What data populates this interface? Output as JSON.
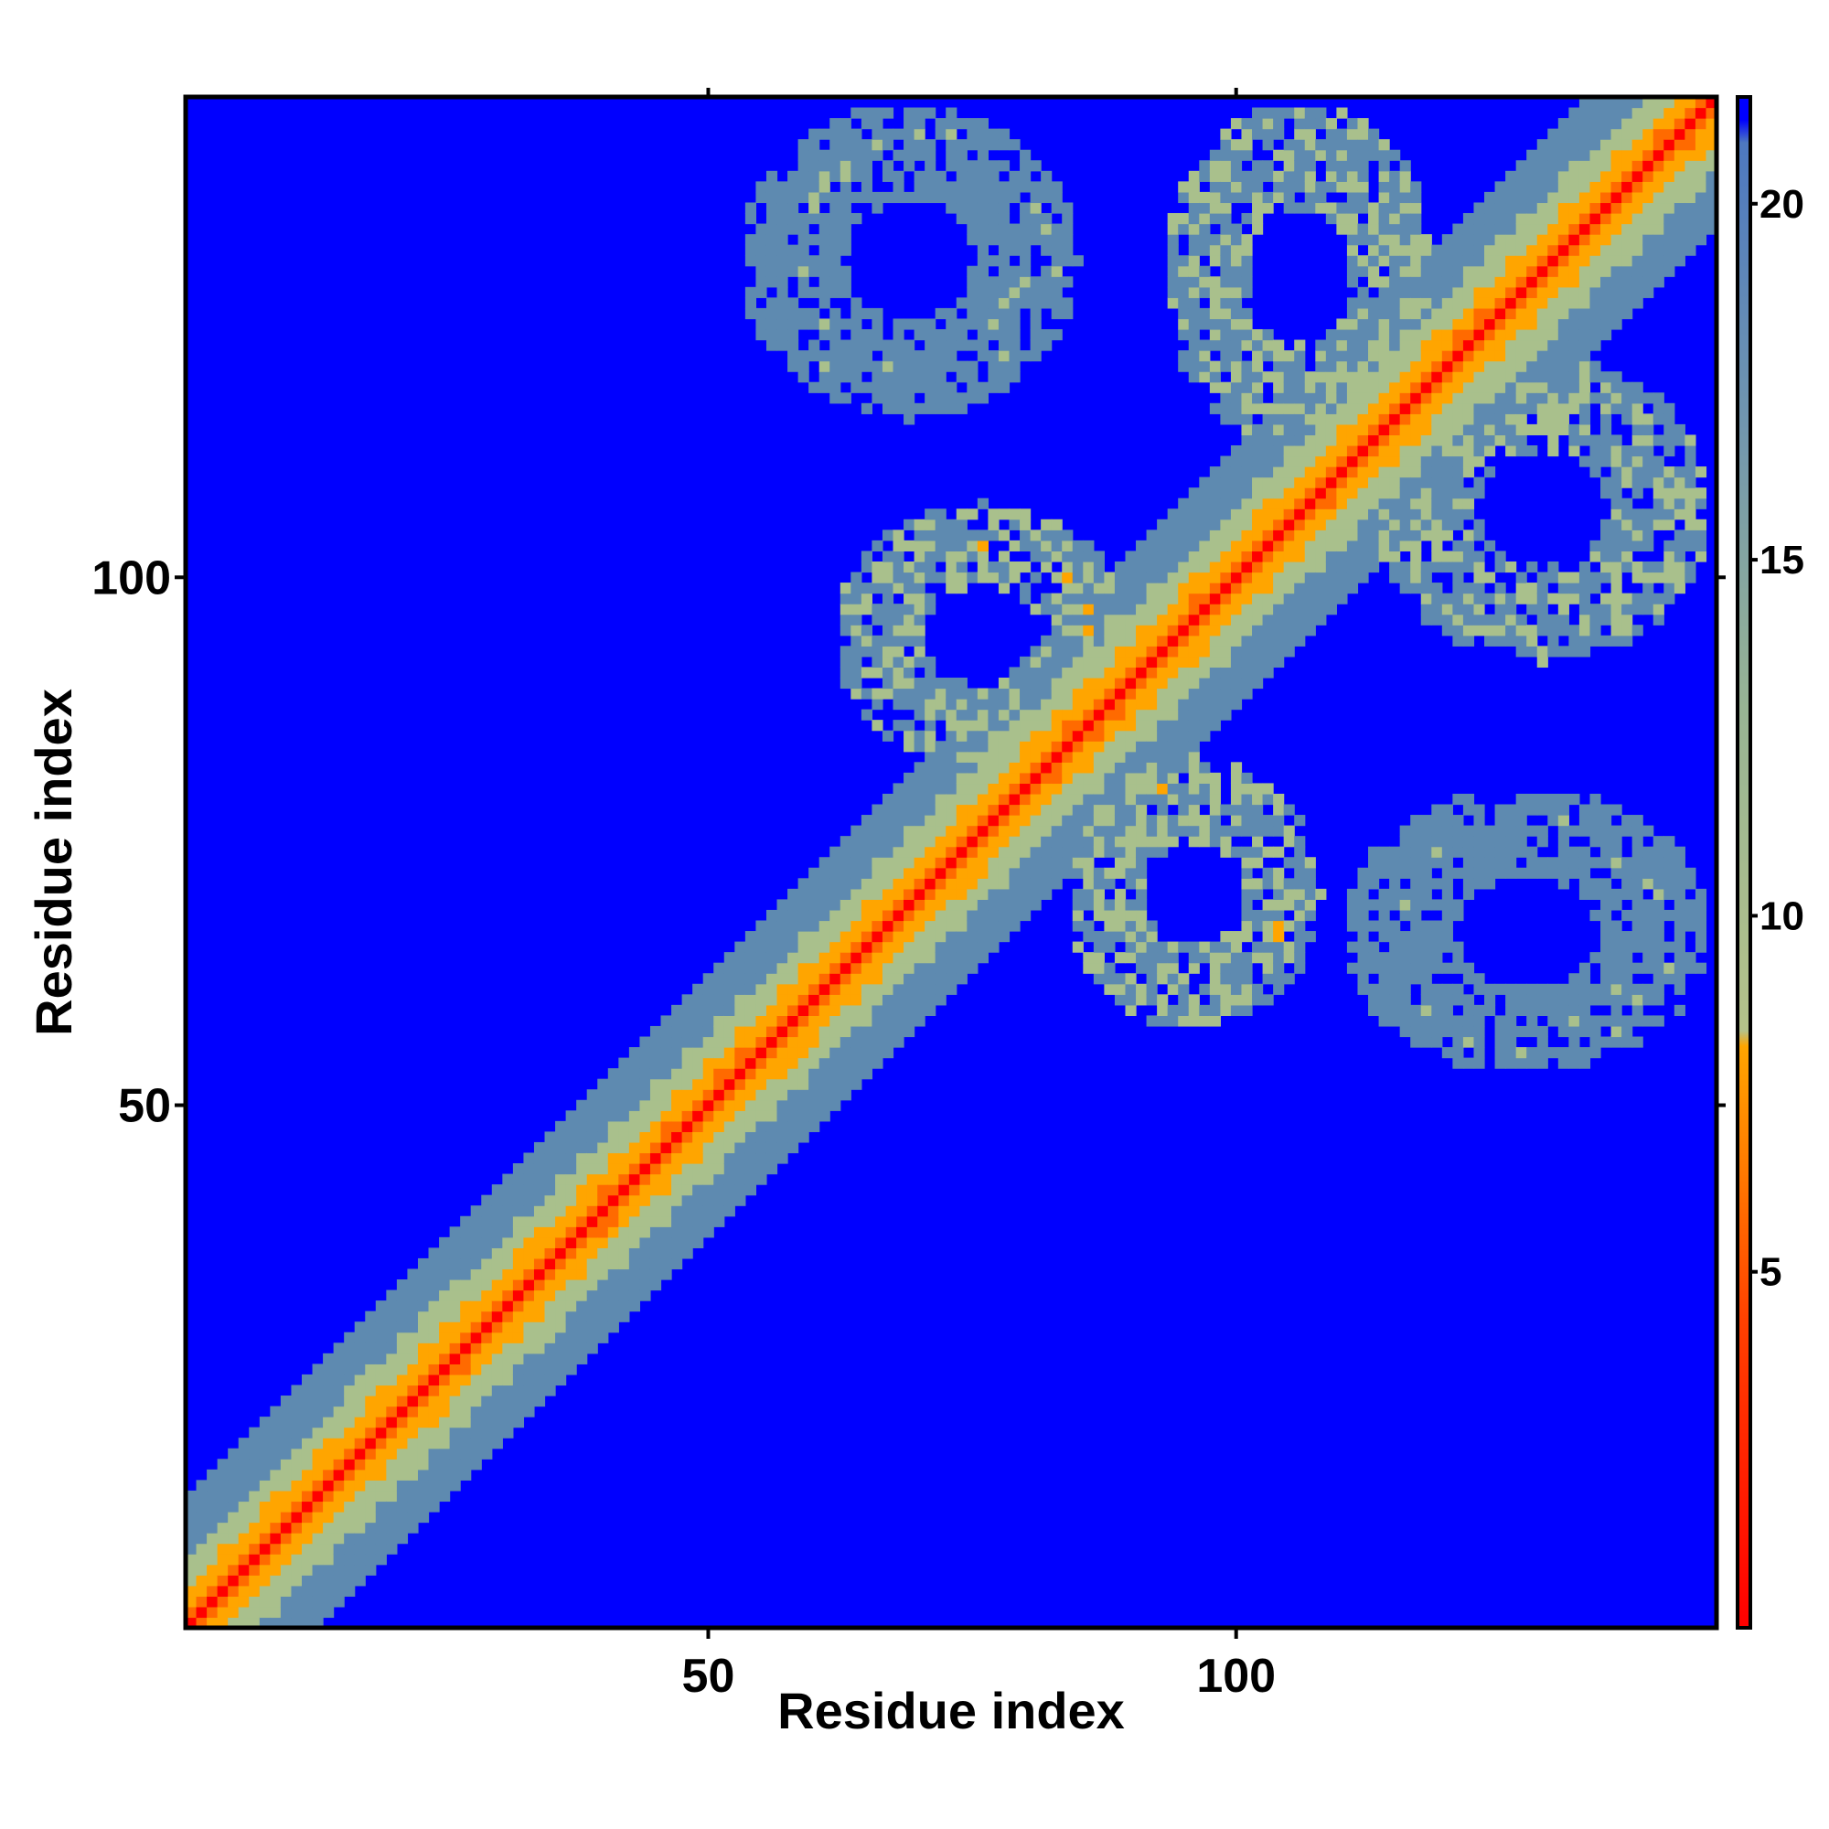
{
  "chart_data": {
    "type": "heatmap",
    "title": "",
    "xlabel": "Residue index",
    "ylabel": "Residue index",
    "n_residues": 145,
    "xlim": [
      1,
      145
    ],
    "ylim": [
      1,
      145
    ],
    "x_ticks": [
      50,
      100
    ],
    "y_ticks": [
      50,
      100
    ],
    "colorbar": {
      "ticks": [
        5,
        10,
        15,
        20
      ],
      "range": [
        0,
        21.5
      ],
      "position": "right"
    },
    "value_cap": 21.5,
    "colors": {
      "background": "#0000ff",
      "very_close": "#ff0000",
      "close": "#ff6a00",
      "near": "#ffa500",
      "mid": "#a9c08c",
      "far": "#5e8ab0"
    },
    "grid": false,
    "diagonal_band": [
      {
        "offset": 0,
        "value": 0.8
      },
      {
        "offset": 1,
        "value": 3.8
      },
      {
        "offset": 2,
        "value": 5.5
      },
      {
        "offset": 3,
        "value": 6.8
      },
      {
        "offset": 4,
        "value": 8.3
      },
      {
        "offset": 5,
        "value": 9.6
      },
      {
        "offset": 6,
        "value": 11.0
      },
      {
        "offset": 7,
        "value": 12.2
      },
      {
        "offset": 8,
        "value": 13.3
      },
      {
        "offset": 9,
        "value": 14.8
      },
      {
        "offset": 10,
        "value": 16.0
      },
      {
        "offset": 11,
        "value": 17.3
      },
      {
        "offset": 12,
        "value": 18.5
      }
    ],
    "contact_regions": [
      {
        "x_range": [
          62,
          90
        ],
        "y_range": [
          82,
          107
        ],
        "value": 13.5
      },
      {
        "x_range": [
          84,
          108
        ],
        "y_range": [
          57,
          83
        ],
        "value": 13.5
      },
      {
        "x_range": [
          93,
          119
        ],
        "y_range": [
          112,
          145
        ],
        "value": 14.0
      },
      {
        "x_range": [
          113,
          145
        ],
        "y_range": [
          92,
          121
        ],
        "value": 14.0
      },
      {
        "x_range": [
          53,
          85
        ],
        "y_range": [
          115,
          145
        ],
        "value": 17.0
      },
      {
        "x_range": [
          110,
          145
        ],
        "y_range": [
          53,
          80
        ],
        "value": 17.0
      }
    ]
  }
}
